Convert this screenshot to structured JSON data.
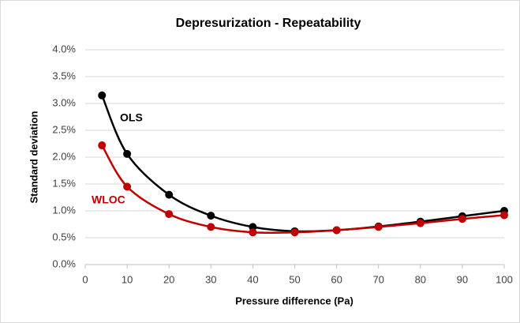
{
  "chart_data": {
    "type": "line",
    "title": "Depresurization - Repeatability",
    "x_label": "Pressure difference (Pa)",
    "y_label": "Standard deviation",
    "x": [
      4,
      10,
      20,
      30,
      40,
      50,
      60,
      70,
      80,
      90,
      100
    ],
    "series": [
      {
        "name": "OLS",
        "color": "#000000",
        "values": [
          3.15,
          2.06,
          1.3,
          0.91,
          0.7,
          0.62,
          0.64,
          0.71,
          0.8,
          0.9,
          1.0
        ]
      },
      {
        "name": "WLOC",
        "color": "#c00000",
        "values": [
          2.22,
          1.45,
          0.94,
          0.7,
          0.6,
          0.6,
          0.64,
          0.7,
          0.77,
          0.85,
          0.92
        ]
      }
    ],
    "xlim": [
      0,
      100
    ],
    "xticks": [
      0,
      10,
      20,
      30,
      40,
      50,
      60,
      70,
      80,
      90,
      100
    ],
    "ylim": [
      0,
      4
    ],
    "yticks": [
      {
        "value": 0,
        "label": "0.0%"
      },
      {
        "value": 0.5,
        "label": "0.5%"
      },
      {
        "value": 1,
        "label": "1.0%"
      },
      {
        "value": 1.5,
        "label": "1.5%"
      },
      {
        "value": 2,
        "label": "2.0%"
      },
      {
        "value": 2.5,
        "label": "2.5%"
      },
      {
        "value": 3,
        "label": "3.0%"
      },
      {
        "value": 3.5,
        "label": "3.5%"
      },
      {
        "value": 4,
        "label": "4.0%"
      }
    ],
    "grid": true,
    "smooth": true
  }
}
